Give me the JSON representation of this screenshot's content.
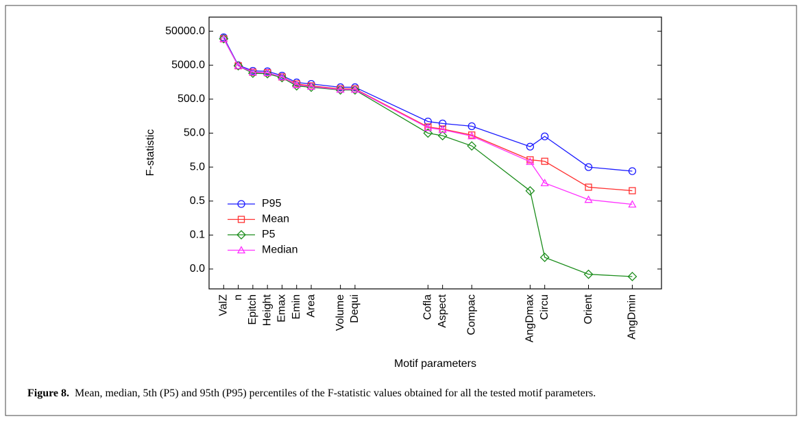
{
  "chart_data": {
    "type": "line",
    "ylabel": "F-statistic",
    "xlabel": "Motif parameters",
    "log_y": true,
    "legend": "lower-left",
    "x": [
      1,
      2,
      3,
      4,
      5,
      6,
      7,
      9,
      10,
      15,
      16,
      18,
      22,
      23,
      26,
      29
    ],
    "xlim": [
      0,
      31
    ],
    "xticks": [
      {
        "value": 1,
        "label": "ValZ"
      },
      {
        "value": 2,
        "label": "n"
      },
      {
        "value": 3,
        "label": "Epitch"
      },
      {
        "value": 4,
        "label": "Height"
      },
      {
        "value": 5,
        "label": "Emax"
      },
      {
        "value": 6,
        "label": "Emin"
      },
      {
        "value": 7,
        "label": "Area"
      },
      {
        "value": 9,
        "label": "Volume"
      },
      {
        "value": 10,
        "label": "Dequi"
      },
      {
        "value": 15,
        "label": "Cofla"
      },
      {
        "value": 16,
        "label": "Aspect"
      },
      {
        "value": 18,
        "label": "Compac"
      },
      {
        "value": 22,
        "label": "AngDmax"
      },
      {
        "value": 23,
        "label": "Circu"
      },
      {
        "value": 26,
        "label": "Orient"
      },
      {
        "value": 29,
        "label": "AngDmin"
      }
    ],
    "ylim": [
      0.0013,
      130000
    ],
    "yticks": [
      {
        "value": 50000,
        "label": "50000.0"
      },
      {
        "value": 5000,
        "label": "5000.0"
      },
      {
        "value": 500,
        "label": "500.0"
      },
      {
        "value": 50,
        "label": "50.0"
      },
      {
        "value": 5,
        "label": "5.0"
      },
      {
        "value": 0.5,
        "label": "0.5"
      },
      {
        "value": 0.05,
        "label": "0.1"
      },
      {
        "value": 0.005,
        "label": "0.0"
      }
    ],
    "series": [
      {
        "name": "P95",
        "color": "#1a1aff",
        "marker": "circle",
        "values": [
          33000,
          5000,
          3400,
          3300,
          2460,
          1550,
          1400,
          1120,
          1120,
          110,
          96,
          80,
          20,
          40,
          5,
          3.8
        ]
      },
      {
        "name": "Mean",
        "color": "#ff3030",
        "marker": "square",
        "values": [
          30000,
          4800,
          3100,
          3000,
          2250,
          1400,
          1230,
          1000,
          1000,
          76,
          66,
          44,
          8.2,
          7.4,
          1.28,
          1.01
        ]
      },
      {
        "name": "P5",
        "color": "#1a8c1a",
        "marker": "diamond",
        "values": [
          30000,
          4800,
          2900,
          2800,
          2150,
          1230,
          1120,
          930,
          930,
          50,
          42,
          21,
          1.0,
          0.011,
          0.0035,
          0.003
        ]
      },
      {
        "name": "Median",
        "color": "#ff30ff",
        "marker": "triangle",
        "values": [
          30000,
          4800,
          3100,
          3000,
          2250,
          1320,
          1170,
          960,
          960,
          72,
          63,
          41,
          7.2,
          1.7,
          0.55,
          0.4
        ]
      }
    ]
  },
  "caption": {
    "label": "Figure 8.",
    "text": "Mean, median, 5th (P5) and 95th (P95) percentiles of the F-statistic values obtained for all the tested motif parameters."
  }
}
